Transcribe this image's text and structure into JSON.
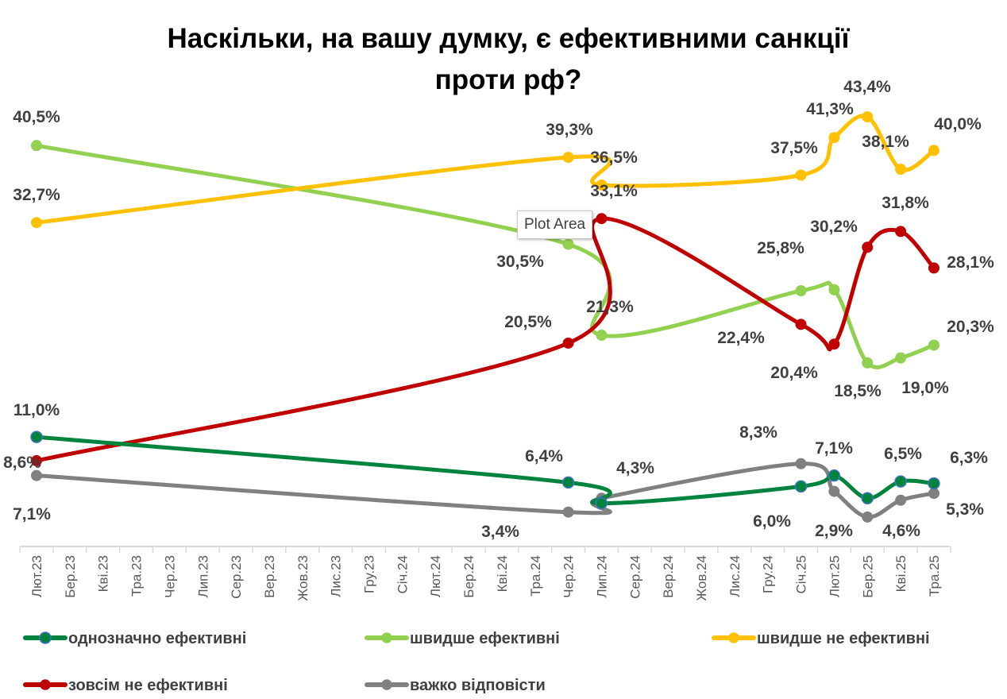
{
  "chart_data": {
    "type": "line",
    "title": [
      "Наскільки, на вашу думку, є ефективними санкції",
      "проти рф?"
    ],
    "xlabel": "",
    "ylabel": "",
    "ylim": [
      0,
      50
    ],
    "grid": false,
    "legend_position": "bottom",
    "categories": [
      "Лют.23",
      "Бер.23",
      "Кві.23",
      "Тра.23",
      "Чер.23",
      "Лип.23",
      "Сер.23",
      "Вер.23",
      "Жов.23",
      "Лис.23",
      "Гру.23",
      "Січ.24",
      "Лют.24",
      "Бер.24",
      "Кві.24",
      "Тра.24",
      "Чер.24",
      "Лип.24",
      "Сер.24",
      "Вер.24",
      "Жов.24",
      "Лис.24",
      "Гру.24",
      "Січ.25",
      "Лют.25",
      "Бер.25",
      "Кві.25",
      "Тра.25"
    ],
    "series": [
      {
        "name": "однозначно ефективні",
        "color": "#00843D",
        "marker_border": "#4472C4",
        "values": [
          11.0,
          null,
          null,
          null,
          null,
          null,
          null,
          null,
          null,
          null,
          null,
          null,
          null,
          null,
          null,
          null,
          6.4,
          4.3,
          null,
          null,
          null,
          null,
          null,
          6.0,
          7.1,
          4.8,
          6.5,
          6.3
        ],
        "labels": [
          "11,0%",
          null,
          null,
          null,
          null,
          null,
          null,
          null,
          null,
          null,
          null,
          null,
          null,
          null,
          null,
          null,
          "6,4%",
          "4,3%",
          null,
          null,
          null,
          null,
          null,
          "6,0%",
          "7,1%",
          null,
          "6,5%",
          "6,3%"
        ]
      },
      {
        "name": "швидше ефективні",
        "color": "#92D050",
        "values": [
          40.5,
          null,
          null,
          null,
          null,
          null,
          null,
          null,
          null,
          null,
          null,
          null,
          null,
          null,
          null,
          null,
          30.5,
          21.3,
          null,
          null,
          null,
          null,
          null,
          25.8,
          25.9,
          18.5,
          19.0,
          20.3
        ],
        "labels": [
          "40,5%",
          null,
          null,
          null,
          null,
          null,
          null,
          null,
          null,
          null,
          null,
          null,
          null,
          null,
          null,
          null,
          "30,5%",
          "21,3%",
          null,
          null,
          null,
          null,
          null,
          "25,8%",
          null,
          "18,5%",
          "19,0%",
          "20,3%"
        ]
      },
      {
        "name": "швидше не ефективні",
        "color": "#FFC000",
        "values": [
          32.7,
          null,
          null,
          null,
          null,
          null,
          null,
          null,
          null,
          null,
          null,
          null,
          null,
          null,
          null,
          null,
          39.3,
          36.5,
          null,
          null,
          null,
          null,
          null,
          37.5,
          41.3,
          43.4,
          38.1,
          40.0
        ],
        "labels": [
          "32,7%",
          null,
          null,
          null,
          null,
          null,
          null,
          null,
          null,
          null,
          null,
          null,
          null,
          null,
          null,
          null,
          "39,3%",
          "36,5%",
          null,
          null,
          null,
          null,
          null,
          "37,5%",
          "41,3%",
          "43,4%",
          "38,1%",
          "40,0%"
        ]
      },
      {
        "name": "зовсім не ефективні",
        "color": "#C00000",
        "values": [
          8.6,
          null,
          null,
          null,
          null,
          null,
          null,
          null,
          null,
          null,
          null,
          null,
          null,
          null,
          null,
          null,
          20.5,
          33.1,
          null,
          null,
          null,
          null,
          null,
          22.4,
          20.4,
          30.2,
          31.8,
          28.1
        ],
        "labels": [
          "8,6%",
          null,
          null,
          null,
          null,
          null,
          null,
          null,
          null,
          null,
          null,
          null,
          null,
          null,
          null,
          null,
          "20,5%",
          "33,1%",
          null,
          null,
          null,
          null,
          null,
          "22,4%",
          "20,4%",
          "30,2%",
          "31,8%",
          "28,1%"
        ]
      },
      {
        "name": "важко відповісти",
        "color": "#808080",
        "values": [
          7.1,
          null,
          null,
          null,
          null,
          null,
          null,
          null,
          null,
          null,
          null,
          null,
          null,
          null,
          null,
          null,
          3.4,
          4.8,
          null,
          null,
          null,
          null,
          null,
          8.3,
          5.5,
          2.9,
          4.6,
          5.3
        ],
        "labels": [
          "7,1%",
          null,
          null,
          null,
          null,
          null,
          null,
          null,
          null,
          null,
          null,
          null,
          null,
          null,
          null,
          null,
          "3,4%",
          null,
          null,
          null,
          null,
          null,
          null,
          "8,3%",
          null,
          "2,9%",
          "4,6%",
          "5,3%"
        ]
      }
    ]
  },
  "tooltip": "Plot Area"
}
